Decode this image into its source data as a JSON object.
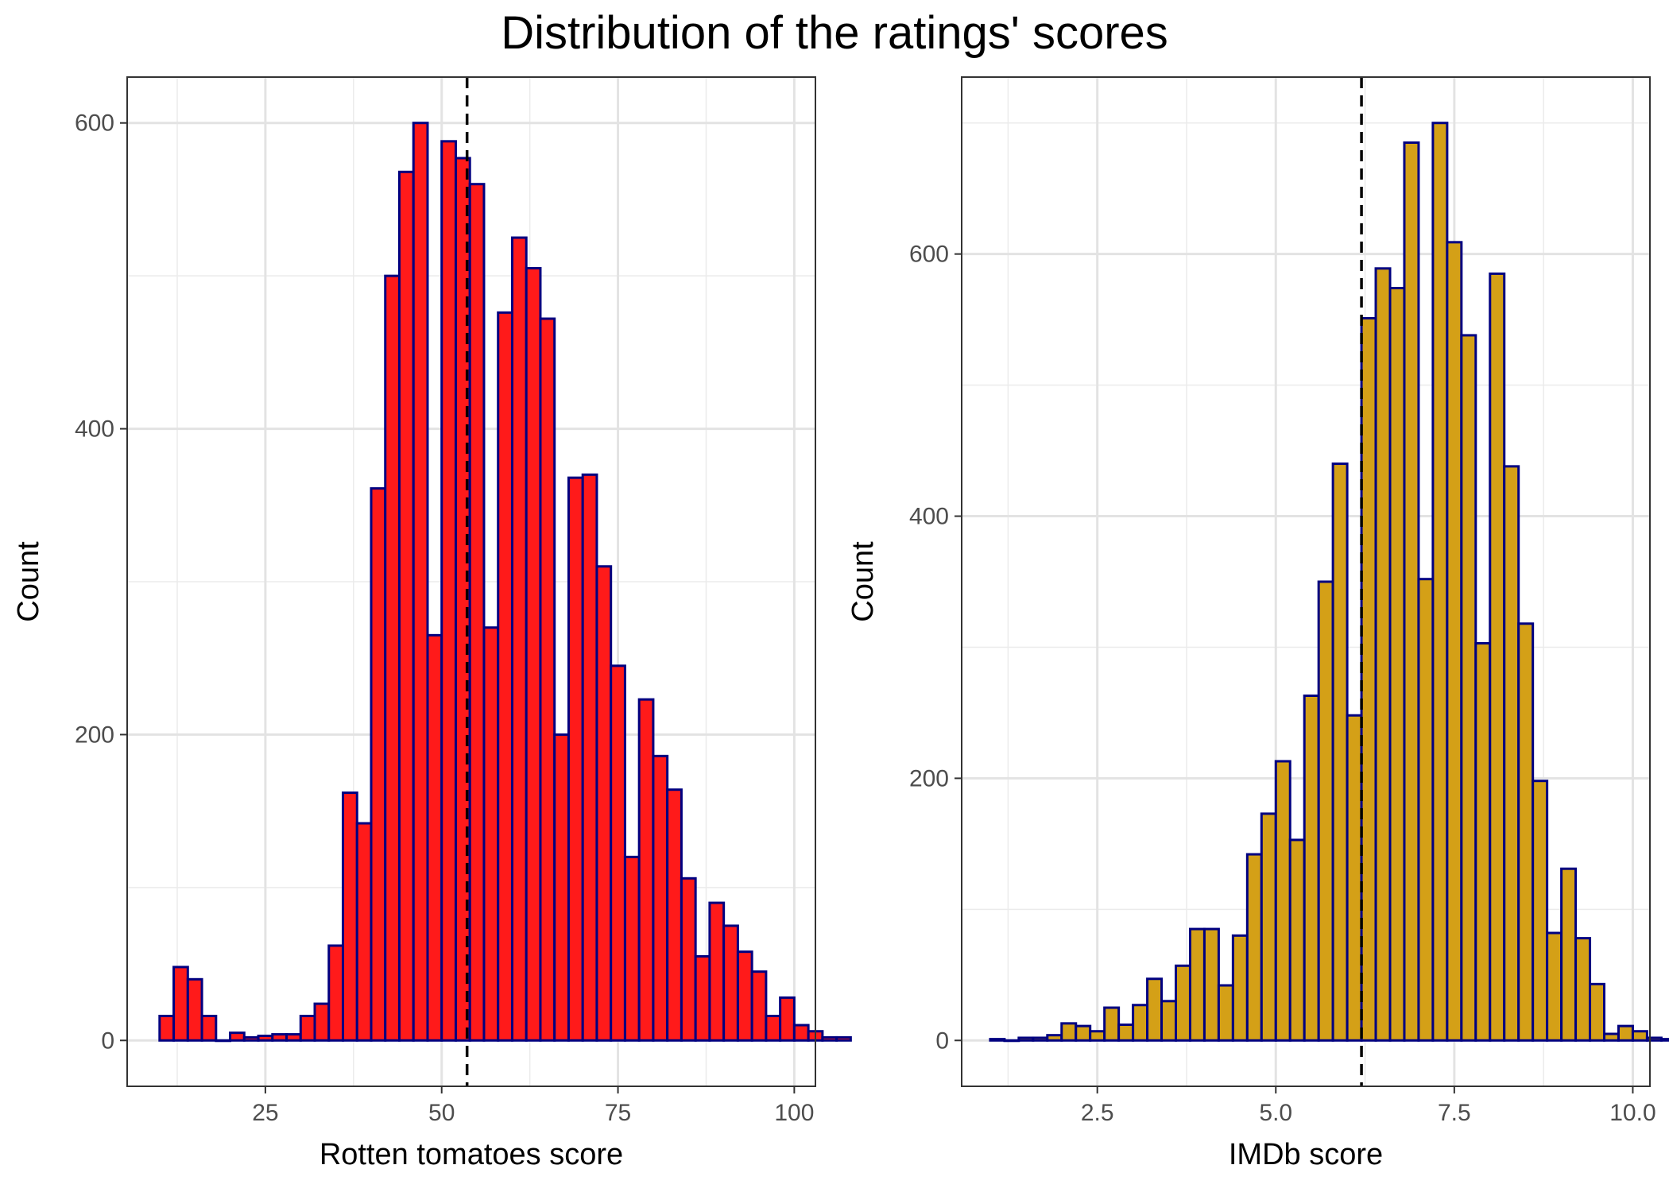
{
  "title": "Distribution of the ratings' scores",
  "chart_data": [
    {
      "type": "bar",
      "subtype": "histogram",
      "xlabel": "Rotten tomatoes score",
      "ylabel": "Count",
      "xlim": [
        5.4,
        103.0
      ],
      "ylim": [
        -30,
        630
      ],
      "x_ticks": [
        25,
        50,
        75,
        100
      ],
      "x_tick_labels": [
        "25",
        "50",
        "75",
        "100"
      ],
      "y_ticks": [
        0,
        200,
        400,
        600
      ],
      "y_tick_labels": [
        "0",
        "200",
        "400",
        "600"
      ],
      "bin_width": 2.0,
      "bin_start": 10.0,
      "values": [
        16,
        48,
        40,
        16,
        0,
        5,
        2,
        3,
        4,
        4,
        16,
        24,
        62,
        162,
        142,
        361,
        500,
        568,
        600,
        265,
        588,
        577,
        560,
        270,
        476,
        525,
        505,
        472,
        200,
        368,
        370,
        310,
        245,
        120,
        223,
        186,
        164,
        106,
        55,
        90,
        75,
        58,
        45,
        16,
        28,
        10,
        6,
        2,
        2
      ],
      "mean_line": 53.6,
      "grid": true,
      "fill_color": "#ff1a1a",
      "edge_color": "#000080"
    },
    {
      "type": "bar",
      "subtype": "histogram",
      "xlabel": "IMDb score",
      "ylabel": "Count",
      "xlim": [
        0.6,
        10.24
      ],
      "ylim": [
        -35,
        735
      ],
      "x_ticks": [
        2.5,
        5.0,
        7.5,
        10.0
      ],
      "x_tick_labels": [
        "2.5",
        "5.0",
        "7.5",
        "10.0"
      ],
      "y_ticks": [
        0,
        200,
        400,
        600
      ],
      "y_tick_labels": [
        "0",
        "200",
        "400",
        "600"
      ],
      "bin_width": 0.2,
      "bin_start": 1.0,
      "values": [
        1,
        0,
        2,
        2,
        4,
        13,
        11,
        7,
        25,
        12,
        27,
        47,
        30,
        57,
        85,
        85,
        42,
        80,
        142,
        173,
        213,
        153,
        263,
        350,
        440,
        248,
        551,
        589,
        574,
        685,
        352,
        700,
        609,
        538,
        303,
        585,
        438,
        318,
        198,
        82,
        131,
        78,
        43,
        5,
        11,
        7,
        2,
        1,
        2,
        4
      ],
      "mean_line": 6.2,
      "grid": true,
      "fill_color": "#d4a017",
      "edge_color": "#000080"
    }
  ]
}
